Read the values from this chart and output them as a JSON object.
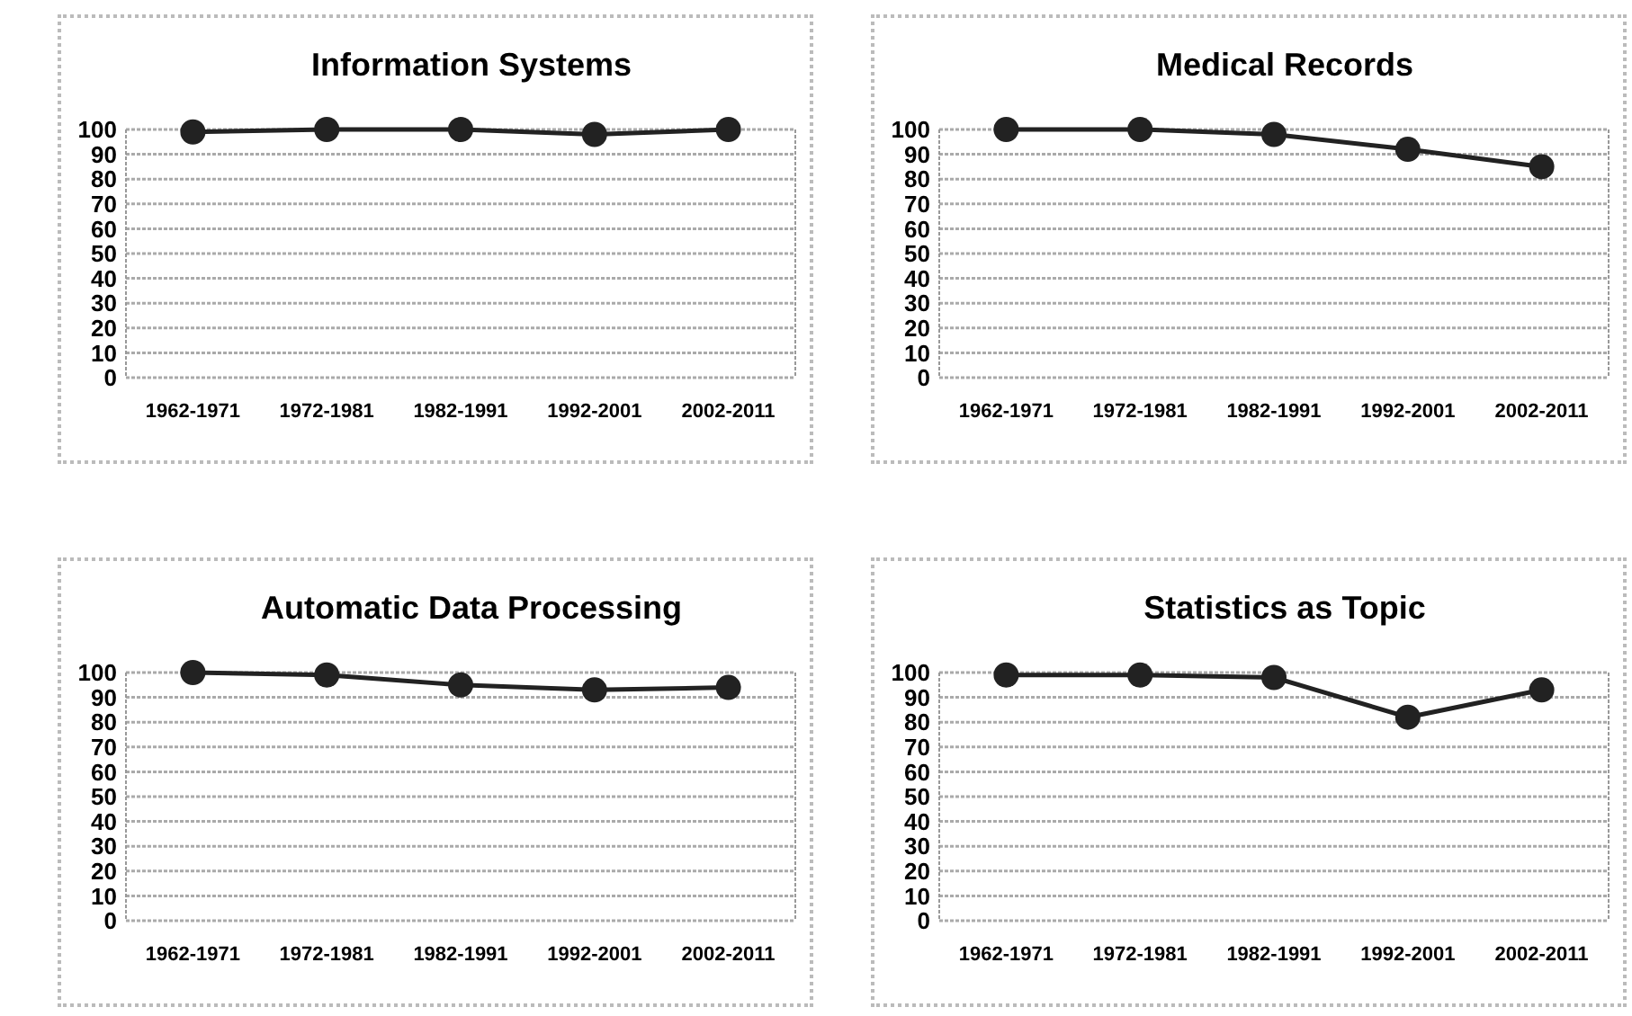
{
  "chart_data": [
    {
      "type": "line",
      "title": "Information Systems",
      "categories": [
        "1962-1971",
        "1972-1981",
        "1982-1991",
        "1992-2001",
        "2002-2011"
      ],
      "series": [
        {
          "color": "#222222",
          "values": [
            99,
            100,
            100,
            98,
            100
          ]
        }
      ],
      "ylim": [
        0,
        100
      ],
      "yticks": [
        0,
        10,
        20,
        30,
        40,
        50,
        60,
        70,
        80,
        90,
        100
      ],
      "grid": "y",
      "marker": "circle"
    },
    {
      "type": "line",
      "title": "Medical Records",
      "categories": [
        "1962-1971",
        "1972-1981",
        "1982-1991",
        "1992-2001",
        "2002-2011"
      ],
      "series": [
        {
          "color": "#222222",
          "values": [
            100,
            100,
            98,
            92,
            85
          ]
        }
      ],
      "ylim": [
        0,
        100
      ],
      "yticks": [
        0,
        10,
        20,
        30,
        40,
        50,
        60,
        70,
        80,
        90,
        100
      ],
      "grid": "y",
      "marker": "circle"
    },
    {
      "type": "line",
      "title": "Automatic Data Processing",
      "categories": [
        "1962-1971",
        "1972-1981",
        "1982-1991",
        "1992-2001",
        "2002-2011"
      ],
      "series": [
        {
          "color": "#222222",
          "values": [
            100,
            99,
            95,
            93,
            94
          ]
        }
      ],
      "ylim": [
        0,
        100
      ],
      "yticks": [
        0,
        10,
        20,
        30,
        40,
        50,
        60,
        70,
        80,
        90,
        100
      ],
      "grid": "y",
      "marker": "circle"
    },
    {
      "type": "line",
      "title": "Statistics as Topic",
      "categories": [
        "1962-1971",
        "1972-1981",
        "1982-1991",
        "1992-2001",
        "2002-2011"
      ],
      "series": [
        {
          "color": "#222222",
          "values": [
            99,
            99,
            98,
            82,
            93
          ]
        }
      ],
      "ylim": [
        0,
        100
      ],
      "yticks": [
        0,
        10,
        20,
        30,
        40,
        50,
        60,
        70,
        80,
        90,
        100
      ],
      "grid": "y",
      "marker": "circle"
    }
  ]
}
